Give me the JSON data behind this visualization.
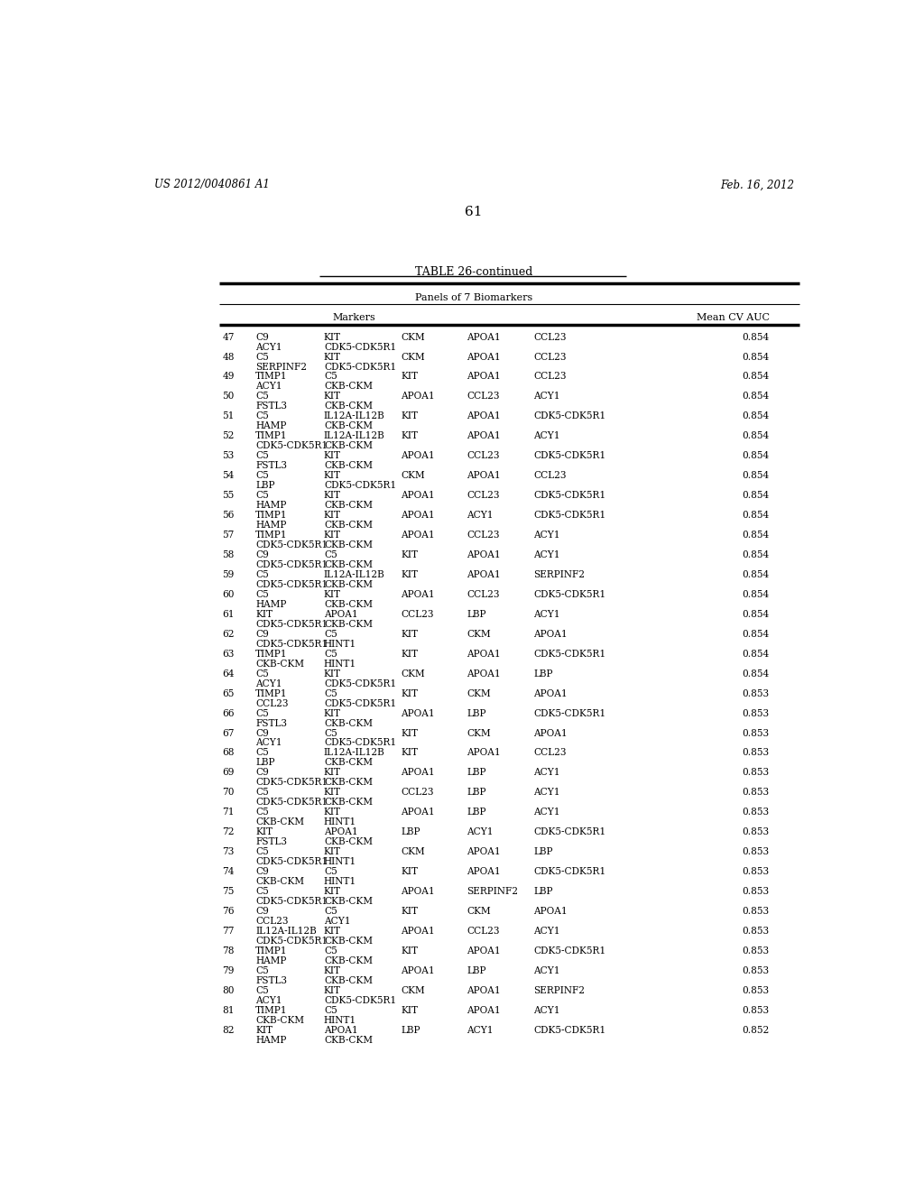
{
  "header_left": "US 2012/0040861 A1",
  "header_right": "Feb. 16, 2012",
  "page_number": "61",
  "table_title": "TABLE 26-continued",
  "section_header": "Panels of 7 Biomarkers",
  "rows": [
    {
      "num": "47",
      "l1": [
        "C9",
        "KIT",
        "CKM",
        "APOA1",
        "CCL23",
        "0.854"
      ],
      "l2": [
        "ACY1",
        "CDK5-CDK5R1"
      ]
    },
    {
      "num": "48",
      "l1": [
        "C5",
        "KIT",
        "CKM",
        "APOA1",
        "CCL23",
        "0.854"
      ],
      "l2": [
        "SERPINF2",
        "CDK5-CDK5R1"
      ]
    },
    {
      "num": "49",
      "l1": [
        "TIMP1",
        "C5",
        "KIT",
        "APOA1",
        "CCL23",
        "0.854"
      ],
      "l2": [
        "ACY1",
        "CKB-CKM"
      ]
    },
    {
      "num": "50",
      "l1": [
        "C5",
        "KIT",
        "APOA1",
        "CCL23",
        "ACY1",
        "0.854"
      ],
      "l2": [
        "FSTL3",
        "CKB-CKM"
      ]
    },
    {
      "num": "51",
      "l1": [
        "C5",
        "IL12A-IL12B",
        "KIT",
        "APOA1",
        "CDK5-CDK5R1",
        "0.854"
      ],
      "l2": [
        "HAMP",
        "CKB-CKM"
      ]
    },
    {
      "num": "52",
      "l1": [
        "TIMP1",
        "IL12A-IL12B",
        "KIT",
        "APOA1",
        "ACY1",
        "0.854"
      ],
      "l2": [
        "CDK5-CDK5R1",
        "CKB-CKM"
      ]
    },
    {
      "num": "53",
      "l1": [
        "C5",
        "KIT",
        "APOA1",
        "CCL23",
        "CDK5-CDK5R1",
        "0.854"
      ],
      "l2": [
        "FSTL3",
        "CKB-CKM"
      ]
    },
    {
      "num": "54",
      "l1": [
        "C5",
        "KIT",
        "CKM",
        "APOA1",
        "CCL23",
        "0.854"
      ],
      "l2": [
        "LBP",
        "CDK5-CDK5R1"
      ]
    },
    {
      "num": "55",
      "l1": [
        "C5",
        "KIT",
        "APOA1",
        "CCL23",
        "CDK5-CDK5R1",
        "0.854"
      ],
      "l2": [
        "HAMP",
        "CKB-CKM"
      ]
    },
    {
      "num": "56",
      "l1": [
        "TIMP1",
        "KIT",
        "APOA1",
        "ACY1",
        "CDK5-CDK5R1",
        "0.854"
      ],
      "l2": [
        "HAMP",
        "CKB-CKM"
      ]
    },
    {
      "num": "57",
      "l1": [
        "TIMP1",
        "KIT",
        "APOA1",
        "CCL23",
        "ACY1",
        "0.854"
      ],
      "l2": [
        "CDK5-CDK5R1",
        "CKB-CKM"
      ]
    },
    {
      "num": "58",
      "l1": [
        "C9",
        "C5",
        "KIT",
        "APOA1",
        "ACY1",
        "0.854"
      ],
      "l2": [
        "CDK5-CDK5R1",
        "CKB-CKM"
      ]
    },
    {
      "num": "59",
      "l1": [
        "C5",
        "IL12A-IL12B",
        "KIT",
        "APOA1",
        "SERPINF2",
        "0.854"
      ],
      "l2": [
        "CDK5-CDK5R1",
        "CKB-CKM"
      ]
    },
    {
      "num": "60",
      "l1": [
        "C5",
        "KIT",
        "APOA1",
        "CCL23",
        "CDK5-CDK5R1",
        "0.854"
      ],
      "l2": [
        "HAMP",
        "CKB-CKM"
      ]
    },
    {
      "num": "61",
      "l1": [
        "KIT",
        "APOA1",
        "CCL23",
        "LBP",
        "ACY1",
        "0.854"
      ],
      "l2": [
        "CDK5-CDK5R1",
        "CKB-CKM"
      ]
    },
    {
      "num": "62",
      "l1": [
        "C9",
        "C5",
        "KIT",
        "CKM",
        "APOA1",
        "0.854"
      ],
      "l2": [
        "CDK5-CDK5R1",
        "HINT1"
      ]
    },
    {
      "num": "63",
      "l1": [
        "TIMP1",
        "C5",
        "KIT",
        "APOA1",
        "CDK5-CDK5R1",
        "0.854"
      ],
      "l2": [
        "CKB-CKM",
        "HINT1"
      ]
    },
    {
      "num": "64",
      "l1": [
        "C5",
        "KIT",
        "CKM",
        "APOA1",
        "LBP",
        "0.854"
      ],
      "l2": [
        "ACY1",
        "CDK5-CDK5R1"
      ]
    },
    {
      "num": "65",
      "l1": [
        "TIMP1",
        "C5",
        "KIT",
        "CKM",
        "APOA1",
        "0.853"
      ],
      "l2": [
        "CCL23",
        "CDK5-CDK5R1"
      ]
    },
    {
      "num": "66",
      "l1": [
        "C5",
        "KIT",
        "APOA1",
        "LBP",
        "CDK5-CDK5R1",
        "0.853"
      ],
      "l2": [
        "FSTL3",
        "CKB-CKM"
      ]
    },
    {
      "num": "67",
      "l1": [
        "C9",
        "C5",
        "KIT",
        "CKM",
        "APOA1",
        "0.853"
      ],
      "l2": [
        "ACY1",
        "CDK5-CDK5R1"
      ]
    },
    {
      "num": "68",
      "l1": [
        "C5",
        "IL12A-IL12B",
        "KIT",
        "APOA1",
        "CCL23",
        "0.853"
      ],
      "l2": [
        "LBP",
        "CKB-CKM"
      ]
    },
    {
      "num": "69",
      "l1": [
        "C9",
        "KIT",
        "APOA1",
        "LBP",
        "ACY1",
        "0.853"
      ],
      "l2": [
        "CDK5-CDK5R1",
        "CKB-CKM"
      ]
    },
    {
      "num": "70",
      "l1": [
        "C5",
        "KIT",
        "CCL23",
        "LBP",
        "ACY1",
        "0.853"
      ],
      "l2": [
        "CDK5-CDK5R1",
        "CKB-CKM"
      ]
    },
    {
      "num": "71",
      "l1": [
        "C5",
        "KIT",
        "APOA1",
        "LBP",
        "ACY1",
        "0.853"
      ],
      "l2": [
        "CKB-CKM",
        "HINT1"
      ]
    },
    {
      "num": "72",
      "l1": [
        "KIT",
        "APOA1",
        "LBP",
        "ACY1",
        "CDK5-CDK5R1",
        "0.853"
      ],
      "l2": [
        "FSTL3",
        "CKB-CKM"
      ]
    },
    {
      "num": "73",
      "l1": [
        "C5",
        "KIT",
        "CKM",
        "APOA1",
        "LBP",
        "0.853"
      ],
      "l2": [
        "CDK5-CDK5R1",
        "HINT1"
      ]
    },
    {
      "num": "74",
      "l1": [
        "C9",
        "C5",
        "KIT",
        "APOA1",
        "CDK5-CDK5R1",
        "0.853"
      ],
      "l2": [
        "CKB-CKM",
        "HINT1"
      ]
    },
    {
      "num": "75",
      "l1": [
        "C5",
        "KIT",
        "APOA1",
        "SERPINF2",
        "LBP",
        "0.853"
      ],
      "l2": [
        "CDK5-CDK5R1",
        "CKB-CKM"
      ]
    },
    {
      "num": "76",
      "l1": [
        "C9",
        "C5",
        "KIT",
        "CKM",
        "APOA1",
        "0.853"
      ],
      "l2": [
        "CCL23",
        "ACY1"
      ]
    },
    {
      "num": "77",
      "l1": [
        "IL12A-IL12B",
        "KIT",
        "APOA1",
        "CCL23",
        "ACY1",
        "0.853"
      ],
      "l2": [
        "CDK5-CDK5R1",
        "CKB-CKM"
      ]
    },
    {
      "num": "78",
      "l1": [
        "TIMP1",
        "C5",
        "KIT",
        "APOA1",
        "CDK5-CDK5R1",
        "0.853"
      ],
      "l2": [
        "HAMP",
        "CKB-CKM"
      ]
    },
    {
      "num": "79",
      "l1": [
        "C5",
        "KIT",
        "APOA1",
        "LBP",
        "ACY1",
        "0.853"
      ],
      "l2": [
        "FSTL3",
        "CKB-CKM"
      ]
    },
    {
      "num": "80",
      "l1": [
        "C5",
        "KIT",
        "CKM",
        "APOA1",
        "SERPINF2",
        "0.853"
      ],
      "l2": [
        "ACY1",
        "CDK5-CDK5R1"
      ]
    },
    {
      "num": "81",
      "l1": [
        "TIMP1",
        "C5",
        "KIT",
        "APOA1",
        "ACY1",
        "0.853"
      ],
      "l2": [
        "CKB-CKM",
        "HINT1"
      ]
    },
    {
      "num": "82",
      "l1": [
        "KIT",
        "APOA1",
        "LBP",
        "ACY1",
        "CDK5-CDK5R1",
        "0.852"
      ],
      "l2": [
        "HAMP",
        "CKB-CKM"
      ]
    }
  ]
}
